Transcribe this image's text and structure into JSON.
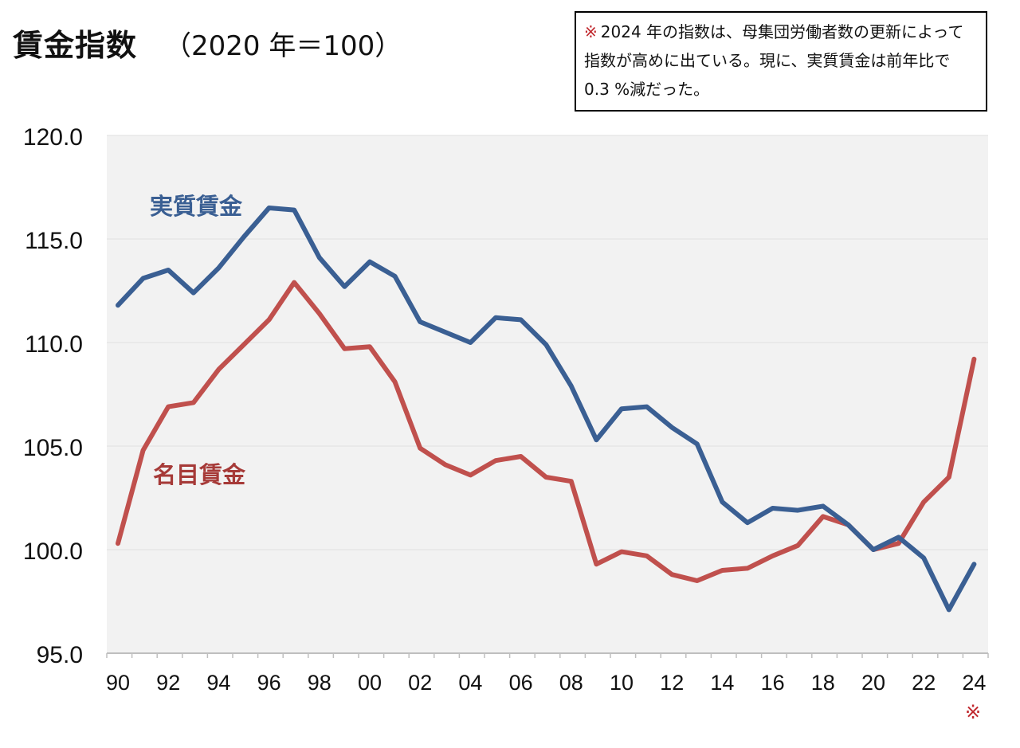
{
  "title": {
    "main": "賃金指数",
    "sub": "（2020 年＝100）"
  },
  "note": {
    "mark": "※",
    "text": "2024 年の指数は、母集団労働者数の更新によって指数が高めに出ている。現に、実質賃金は前年比で 0.3 %減だった。"
  },
  "footnote_mark": "※",
  "colors": {
    "real": "#3a5f93",
    "nominal": "#c0504d",
    "plot_bg": "#f2f2f2",
    "grid": "#e0e0e0",
    "axis": "#bfbfbf",
    "real_label": "#3a5f93",
    "nominal_label": "#a63a38"
  },
  "chart_data": {
    "type": "line",
    "title": "賃金指数（2020 年＝100）",
    "xlabel": "",
    "ylabel": "",
    "ylim": [
      95.0,
      120.0
    ],
    "yticks": [
      "95.0",
      "100.0",
      "105.0",
      "110.0",
      "115.0",
      "120.0"
    ],
    "grid": true,
    "x": [
      1990,
      1991,
      1992,
      1993,
      1994,
      1995,
      1996,
      1997,
      1998,
      1999,
      2000,
      2001,
      2002,
      2003,
      2004,
      2005,
      2006,
      2007,
      2008,
      2009,
      2010,
      2011,
      2012,
      2013,
      2014,
      2015,
      2016,
      2017,
      2018,
      2019,
      2020,
      2021,
      2022,
      2023,
      2024
    ],
    "xticks": [
      "90",
      "92",
      "94",
      "96",
      "98",
      "00",
      "02",
      "04",
      "06",
      "08",
      "10",
      "12",
      "14",
      "16",
      "18",
      "20",
      "22",
      "24"
    ],
    "series": [
      {
        "name": "実質賃金",
        "values": [
          111.8,
          113.1,
          113.5,
          112.4,
          113.6,
          115.1,
          116.5,
          116.4,
          114.1,
          112.7,
          113.9,
          113.2,
          111.0,
          110.5,
          110.0,
          111.2,
          111.1,
          109.9,
          107.9,
          105.3,
          106.8,
          106.9,
          105.9,
          105.1,
          102.3,
          101.3,
          102.0,
          101.9,
          102.1,
          101.2,
          100.0,
          100.6,
          99.6,
          97.1,
          99.3
        ]
      },
      {
        "name": "名目賃金",
        "values": [
          100.3,
          104.8,
          106.9,
          107.1,
          108.7,
          109.9,
          111.1,
          112.9,
          111.4,
          109.7,
          109.8,
          108.1,
          104.9,
          104.1,
          103.6,
          104.3,
          104.5,
          103.5,
          103.3,
          99.3,
          99.9,
          99.7,
          98.8,
          98.5,
          99.0,
          99.1,
          99.7,
          100.2,
          101.6,
          101.2,
          100.0,
          100.3,
          102.3,
          103.5,
          109.2
        ]
      }
    ]
  }
}
